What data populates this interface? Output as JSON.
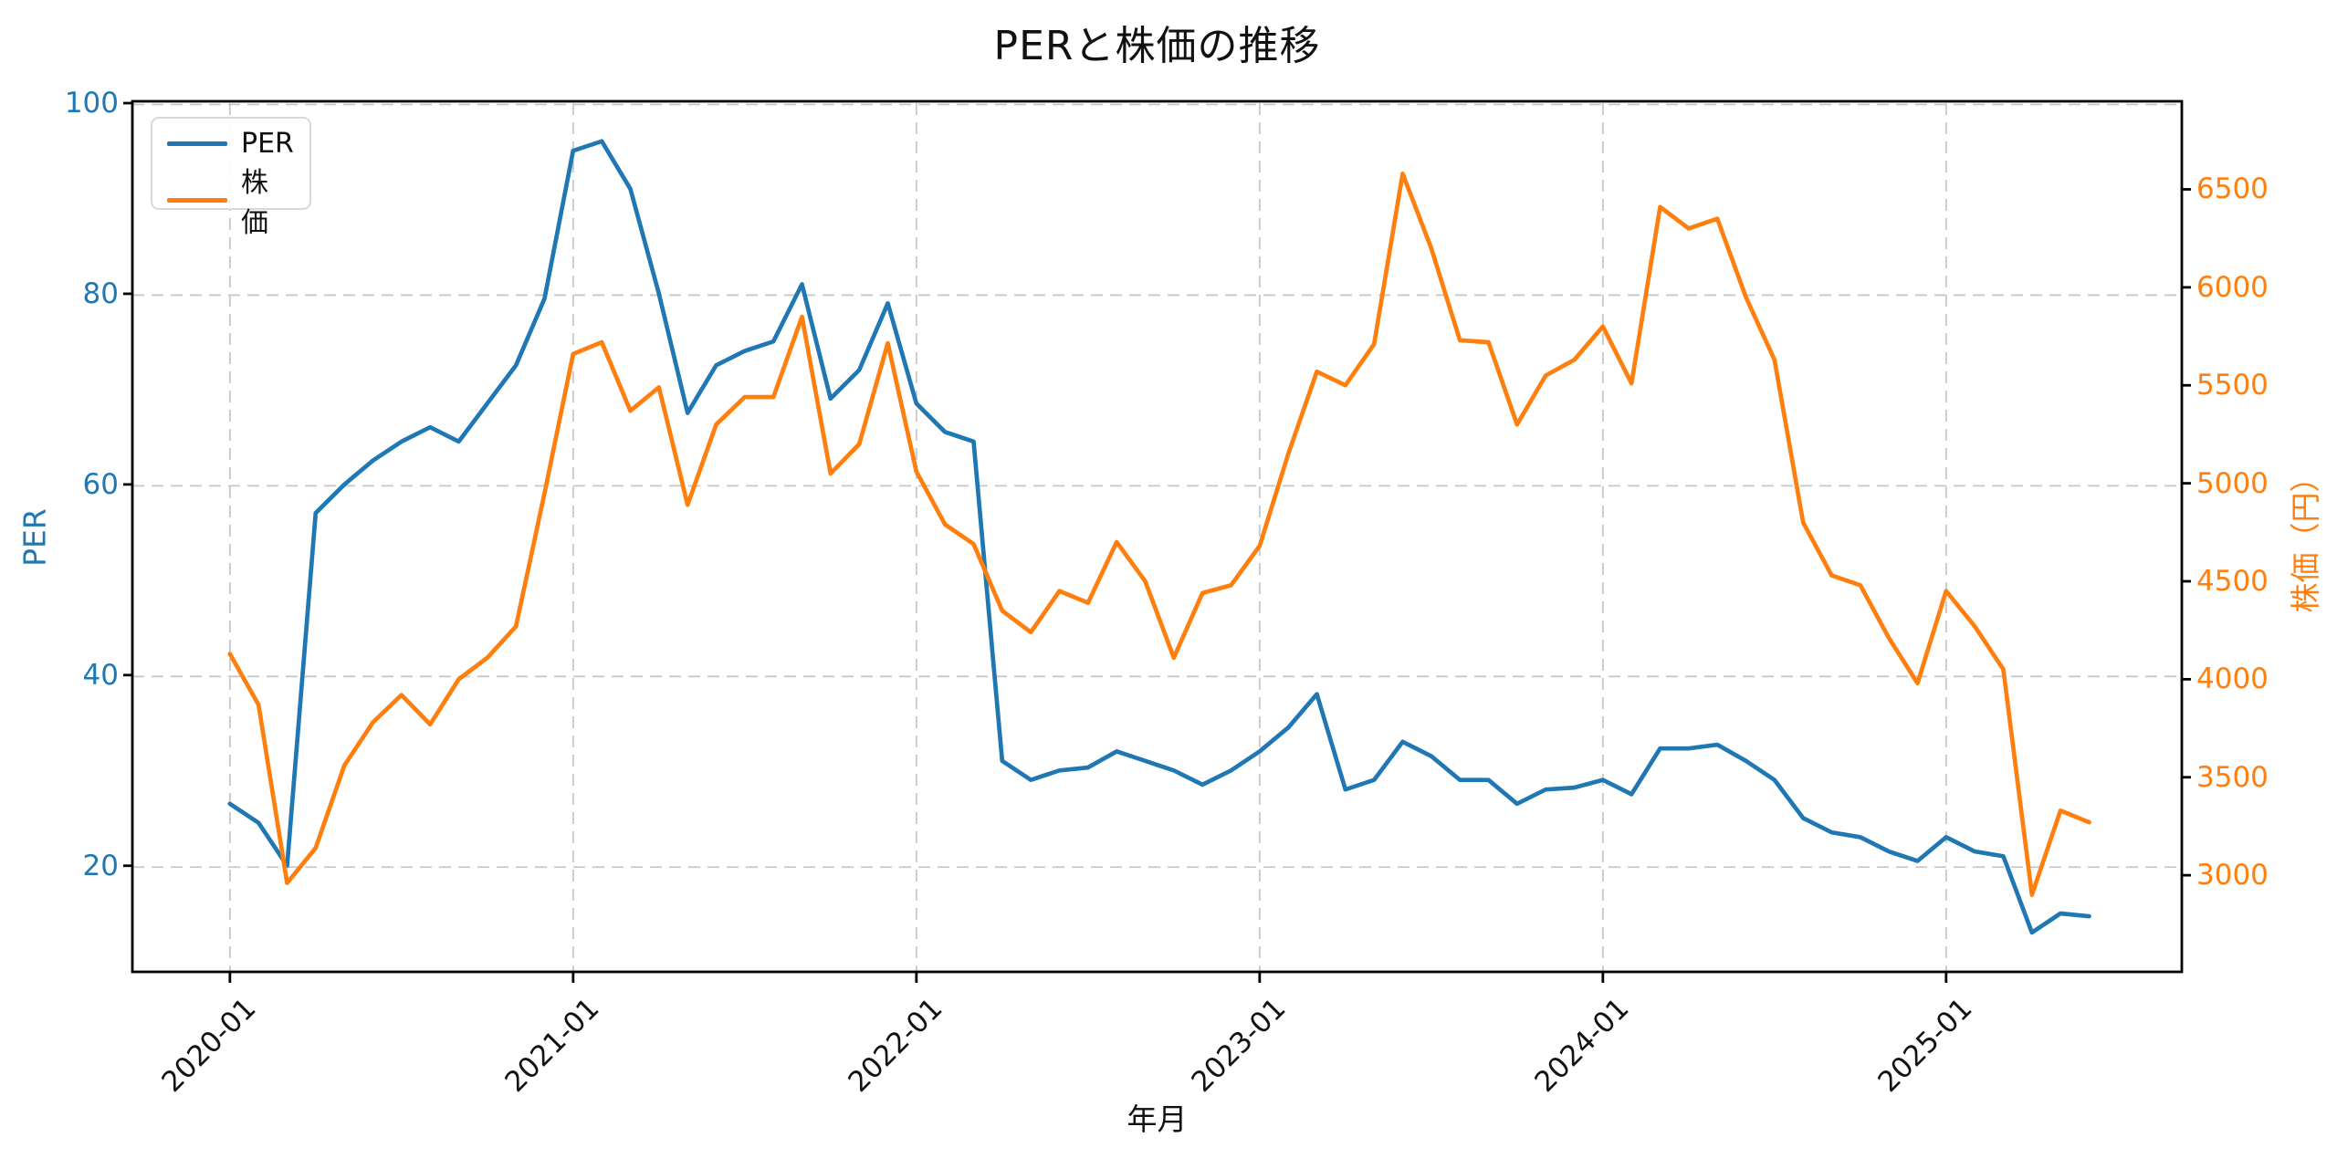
{
  "figure": {
    "title": "PERと株価の推移",
    "background": "#ffffff"
  },
  "legend": {
    "items": [
      {
        "label": "PER",
        "color": "#1f77b4"
      },
      {
        "label": "株価",
        "color": "#ff7f0e"
      }
    ]
  },
  "chart_data": {
    "type": "line",
    "title": "PERと株価の推移",
    "xlabel": "年月",
    "ylabel_left": "PER",
    "ylabel_right": "株価（円）",
    "grid": true,
    "grid_color": "#c7c7c7",
    "legend_position": "upper-left",
    "x_tick_labels": [
      "2020-01",
      "2021-01",
      "2022-01",
      "2023-01",
      "2024-01",
      "2025-01"
    ],
    "x_tick_month_index": [
      0,
      12,
      24,
      36,
      48,
      60
    ],
    "left_ticks": [
      100,
      80,
      60,
      40,
      20
    ],
    "right_ticks": [
      6500,
      6000,
      5500,
      5000,
      4500,
      4000,
      3500,
      3000
    ],
    "xlim_month_index": [
      -3.41,
      68.24
    ],
    "ylim_left": [
      8.87,
      100
    ],
    "ylim_right": [
      2507,
      6940
    ],
    "months": [
      "2020-01",
      "2020-02",
      "2020-03",
      "2020-04",
      "2020-05",
      "2020-06",
      "2020-07",
      "2020-08",
      "2020-09",
      "2020-10",
      "2020-11",
      "2020-12",
      "2021-01",
      "2021-02",
      "2021-03",
      "2021-04",
      "2021-05",
      "2021-06",
      "2021-07",
      "2021-08",
      "2021-09",
      "2021-10",
      "2021-11",
      "2021-12",
      "2022-01",
      "2022-02",
      "2022-03",
      "2022-04",
      "2022-05",
      "2022-06",
      "2022-07",
      "2022-08",
      "2022-09",
      "2022-10",
      "2022-11",
      "2022-12",
      "2023-01",
      "2023-02",
      "2023-03",
      "2023-04",
      "2023-05",
      "2023-06",
      "2023-07",
      "2023-08",
      "2023-09",
      "2023-10",
      "2023-11",
      "2023-12",
      "2024-01",
      "2024-02",
      "2024-03",
      "2024-04",
      "2024-05",
      "2024-06",
      "2024-07",
      "2024-08",
      "2024-09",
      "2024-10",
      "2024-11",
      "2024-12",
      "2025-01",
      "2025-02",
      "2025-03",
      "2025-04",
      "2025-05",
      "2025-06"
    ],
    "series": [
      {
        "name": "PER",
        "axis": "left",
        "color": "#1f77b4",
        "values": [
          26.5,
          24.5,
          20,
          57,
          60,
          62.5,
          64.5,
          66,
          64.5,
          68.5,
          72.5,
          79.5,
          95,
          96,
          91,
          80,
          67.5,
          72.5,
          74,
          75,
          81,
          69,
          72,
          79,
          68.5,
          65.5,
          64.5,
          31,
          29,
          30,
          30.3,
          32,
          31,
          30,
          28.5,
          30,
          32,
          34.5,
          38,
          28,
          29,
          33,
          31.5,
          29,
          29,
          26.5,
          28,
          28.2,
          29,
          27.5,
          32.3,
          32.3,
          32.7,
          31,
          29,
          25,
          23.5,
          23,
          21.5,
          20.5,
          23,
          21.5,
          21,
          13,
          15,
          14.7
        ]
      },
      {
        "name": "株価",
        "axis": "right",
        "color": "#ff7f0e",
        "values": [
          4130,
          3870,
          2960,
          3140,
          3560,
          3780,
          3920,
          3770,
          4000,
          4110,
          4270,
          4950,
          5660,
          5720,
          5370,
          5490,
          4890,
          5300,
          5440,
          5440,
          5850,
          5050,
          5200,
          5715,
          5060,
          4790,
          4690,
          4350,
          4240,
          4450,
          4390,
          4700,
          4500,
          4110,
          4440,
          4480,
          4680,
          5150,
          5570,
          5500,
          5710,
          6580,
          6200,
          5730,
          5720,
          5300,
          5550,
          5630,
          5800,
          5510,
          6410,
          6300,
          6350,
          5950,
          5630,
          4800,
          4530,
          4480,
          4210,
          3980,
          4450,
          4270,
          4050,
          2900,
          3330,
          3270
        ]
      }
    ]
  }
}
